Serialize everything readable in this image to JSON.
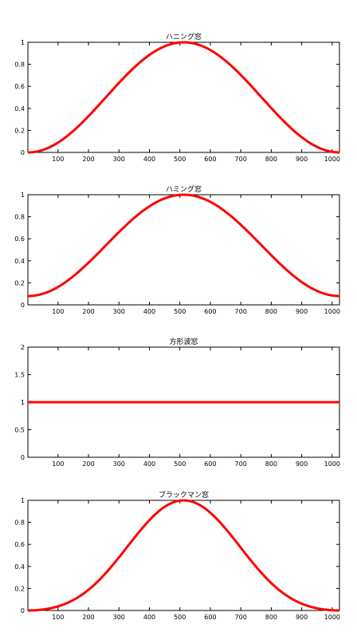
{
  "chart_data": [
    {
      "type": "line",
      "title": "ハニング窓",
      "window": "hanning",
      "n_points": 1024,
      "xlim": [
        1,
        1024
      ],
      "ylim": [
        0,
        1
      ],
      "xticks": [
        100,
        200,
        300,
        400,
        500,
        600,
        700,
        800,
        900,
        1000
      ],
      "yticks": [
        0,
        0.2,
        0.4,
        0.6,
        0.8,
        1
      ],
      "ytick_labels": [
        "0",
        "0.2",
        "0.4",
        "0.6",
        "0.8",
        "1"
      ],
      "series": [
        {
          "color": "#ff0000",
          "formula": "0.5 - 0.5*cos(2*pi*(n-1)/1023)",
          "min": 0,
          "max": 1
        }
      ],
      "xlabel": "",
      "ylabel": ""
    },
    {
      "type": "line",
      "title": "ハミング窓",
      "window": "hamming",
      "n_points": 1024,
      "xlim": [
        1,
        1024
      ],
      "ylim": [
        0,
        1
      ],
      "xticks": [
        100,
        200,
        300,
        400,
        500,
        600,
        700,
        800,
        900,
        1000
      ],
      "yticks": [
        0,
        0.2,
        0.4,
        0.6,
        0.8,
        1
      ],
      "ytick_labels": [
        "0",
        "0.2",
        "0.4",
        "0.6",
        "0.8",
        "1"
      ],
      "series": [
        {
          "color": "#ff0000",
          "formula": "0.54 - 0.46*cos(2*pi*(n-1)/1023)",
          "min": 0.08,
          "max": 1
        }
      ],
      "xlabel": "",
      "ylabel": ""
    },
    {
      "type": "line",
      "title": "方形波窓",
      "window": "rectangular",
      "n_points": 1024,
      "xlim": [
        1,
        1024
      ],
      "ylim": [
        0,
        2
      ],
      "xticks": [
        100,
        200,
        300,
        400,
        500,
        600,
        700,
        800,
        900,
        1000
      ],
      "yticks": [
        0,
        0.5,
        1,
        1.5,
        2
      ],
      "ytick_labels": [
        "0",
        "0.5",
        "1",
        "1.5",
        "2"
      ],
      "series": [
        {
          "color": "#ff0000",
          "formula": "1",
          "min": 1,
          "max": 1
        }
      ],
      "xlabel": "",
      "ylabel": ""
    },
    {
      "type": "line",
      "title": "ブラックマン窓",
      "window": "blackman",
      "n_points": 1024,
      "xlim": [
        1,
        1024
      ],
      "ylim": [
        0,
        1
      ],
      "xticks": [
        100,
        200,
        300,
        400,
        500,
        600,
        700,
        800,
        900,
        1000
      ],
      "yticks": [
        0,
        0.2,
        0.4,
        0.6,
        0.8,
        1
      ],
      "ytick_labels": [
        "0",
        "0.2",
        "0.4",
        "0.6",
        "0.8",
        "1"
      ],
      "series": [
        {
          "color": "#ff0000",
          "formula": "0.42 - 0.5*cos(2*pi*(n-1)/1023) + 0.08*cos(4*pi*(n-1)/1023)",
          "min": 0,
          "max": 1
        }
      ],
      "xlabel": "",
      "ylabel": ""
    }
  ]
}
